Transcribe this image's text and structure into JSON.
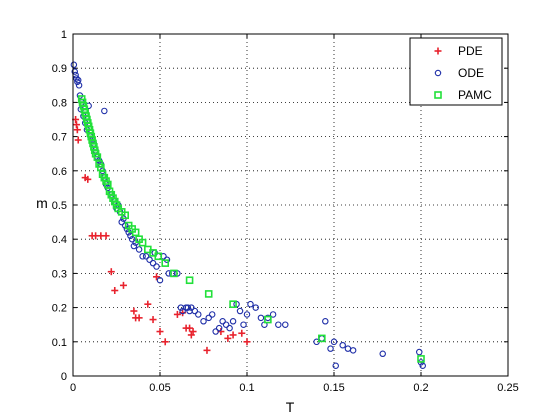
{
  "chart_data": {
    "type": "scatter",
    "xlabel": "T",
    "ylabel": "m",
    "xlim": [
      0,
      0.25
    ],
    "ylim": [
      0,
      1
    ],
    "x_ticks": [
      "0",
      "0.05",
      "0.1",
      "0.15",
      "0.2",
      "0.25"
    ],
    "y_ticks": [
      "0",
      "0.1",
      "0.2",
      "0.3",
      "0.4",
      "0.5",
      "0.6",
      "0.7",
      "0.8",
      "0.9",
      "1"
    ],
    "grid": true,
    "legend_position": "top-right",
    "series": [
      {
        "name": "PDE",
        "marker": "plus",
        "color": "#e8222d",
        "points": [
          [
            0.0015,
            0.75
          ],
          [
            0.002,
            0.735
          ],
          [
            0.0025,
            0.72
          ],
          [
            0.003,
            0.69
          ],
          [
            0.007,
            0.58
          ],
          [
            0.0085,
            0.575
          ],
          [
            0.011,
            0.41
          ],
          [
            0.013,
            0.41
          ],
          [
            0.016,
            0.41
          ],
          [
            0.019,
            0.41
          ],
          [
            0.022,
            0.305
          ],
          [
            0.024,
            0.25
          ],
          [
            0.029,
            0.265
          ],
          [
            0.035,
            0.19
          ],
          [
            0.036,
            0.17
          ],
          [
            0.038,
            0.17
          ],
          [
            0.043,
            0.21
          ],
          [
            0.046,
            0.165
          ],
          [
            0.048,
            0.29
          ],
          [
            0.05,
            0.13
          ],
          [
            0.053,
            0.1
          ],
          [
            0.06,
            0.18
          ],
          [
            0.063,
            0.185
          ],
          [
            0.065,
            0.14
          ],
          [
            0.067,
            0.14
          ],
          [
            0.068,
            0.12
          ],
          [
            0.069,
            0.13
          ],
          [
            0.077,
            0.075
          ],
          [
            0.085,
            0.13
          ],
          [
            0.089,
            0.11
          ],
          [
            0.092,
            0.12
          ],
          [
            0.097,
            0.125
          ],
          [
            0.1,
            0.1
          ]
        ]
      },
      {
        "name": "ODE",
        "marker": "circle",
        "color": "#1f2fa8",
        "points": [
          [
            0.0005,
            0.91
          ],
          [
            0.001,
            0.89
          ],
          [
            0.0015,
            0.88
          ],
          [
            0.002,
            0.87
          ],
          [
            0.0025,
            0.86
          ],
          [
            0.003,
            0.865
          ],
          [
            0.0035,
            0.85
          ],
          [
            0.004,
            0.82
          ],
          [
            0.0045,
            0.78
          ],
          [
            0.005,
            0.8
          ],
          [
            0.006,
            0.76
          ],
          [
            0.007,
            0.74
          ],
          [
            0.008,
            0.72
          ],
          [
            0.009,
            0.79
          ],
          [
            0.01,
            0.7
          ],
          [
            0.011,
            0.69
          ],
          [
            0.012,
            0.68
          ],
          [
            0.013,
            0.66
          ],
          [
            0.014,
            0.64
          ],
          [
            0.015,
            0.63
          ],
          [
            0.016,
            0.62
          ],
          [
            0.017,
            0.6
          ],
          [
            0.018,
            0.58
          ],
          [
            0.019,
            0.56
          ],
          [
            0.018,
            0.775
          ],
          [
            0.02,
            0.55
          ],
          [
            0.022,
            0.53
          ],
          [
            0.024,
            0.51
          ],
          [
            0.025,
            0.49
          ],
          [
            0.026,
            0.5
          ],
          [
            0.027,
            0.48
          ],
          [
            0.028,
            0.45
          ],
          [
            0.029,
            0.46
          ],
          [
            0.03,
            0.44
          ],
          [
            0.031,
            0.43
          ],
          [
            0.032,
            0.42
          ],
          [
            0.033,
            0.41
          ],
          [
            0.034,
            0.4
          ],
          [
            0.035,
            0.38
          ],
          [
            0.036,
            0.39
          ],
          [
            0.038,
            0.37
          ],
          [
            0.04,
            0.35
          ],
          [
            0.042,
            0.35
          ],
          [
            0.044,
            0.34
          ],
          [
            0.046,
            0.33
          ],
          [
            0.047,
            0.36
          ],
          [
            0.048,
            0.32
          ],
          [
            0.05,
            0.28
          ],
          [
            0.052,
            0.35
          ],
          [
            0.054,
            0.34
          ],
          [
            0.055,
            0.3
          ],
          [
            0.057,
            0.3
          ],
          [
            0.06,
            0.3
          ],
          [
            0.062,
            0.2
          ],
          [
            0.063,
            0.19
          ],
          [
            0.065,
            0.2
          ],
          [
            0.066,
            0.2
          ],
          [
            0.067,
            0.19
          ],
          [
            0.068,
            0.2
          ],
          [
            0.07,
            0.19
          ],
          [
            0.072,
            0.18
          ],
          [
            0.075,
            0.16
          ],
          [
            0.078,
            0.17
          ],
          [
            0.08,
            0.18
          ],
          [
            0.082,
            0.13
          ],
          [
            0.084,
            0.14
          ],
          [
            0.086,
            0.16
          ],
          [
            0.088,
            0.15
          ],
          [
            0.09,
            0.14
          ],
          [
            0.092,
            0.16
          ],
          [
            0.094,
            0.21
          ],
          [
            0.096,
            0.19
          ],
          [
            0.098,
            0.15
          ],
          [
            0.1,
            0.18
          ],
          [
            0.102,
            0.21
          ],
          [
            0.105,
            0.2
          ],
          [
            0.108,
            0.17
          ],
          [
            0.11,
            0.15
          ],
          [
            0.112,
            0.17
          ],
          [
            0.115,
            0.18
          ],
          [
            0.118,
            0.15
          ],
          [
            0.122,
            0.15
          ],
          [
            0.14,
            0.1
          ],
          [
            0.143,
            0.11
          ],
          [
            0.145,
            0.16
          ],
          [
            0.148,
            0.08
          ],
          [
            0.15,
            0.1
          ],
          [
            0.151,
            0.03
          ],
          [
            0.155,
            0.09
          ],
          [
            0.158,
            0.08
          ],
          [
            0.161,
            0.075
          ],
          [
            0.178,
            0.065
          ],
          [
            0.199,
            0.07
          ],
          [
            0.2,
            0.04
          ],
          [
            0.201,
            0.03
          ]
        ]
      },
      {
        "name": "PAMC",
        "marker": "square",
        "color": "#22e03a",
        "points": [
          [
            0.005,
            0.81
          ],
          [
            0.0055,
            0.8
          ],
          [
            0.006,
            0.79
          ],
          [
            0.0065,
            0.78
          ],
          [
            0.007,
            0.77
          ],
          [
            0.0075,
            0.76
          ],
          [
            0.008,
            0.75
          ],
          [
            0.0085,
            0.74
          ],
          [
            0.009,
            0.73
          ],
          [
            0.0095,
            0.72
          ],
          [
            0.01,
            0.71
          ],
          [
            0.0105,
            0.7
          ],
          [
            0.011,
            0.69
          ],
          [
            0.0115,
            0.68
          ],
          [
            0.012,
            0.67
          ],
          [
            0.0125,
            0.66
          ],
          [
            0.013,
            0.65
          ],
          [
            0.014,
            0.64
          ],
          [
            0.015,
            0.62
          ],
          [
            0.016,
            0.61
          ],
          [
            0.017,
            0.59
          ],
          [
            0.018,
            0.58
          ],
          [
            0.019,
            0.57
          ],
          [
            0.02,
            0.56
          ],
          [
            0.021,
            0.54
          ],
          [
            0.022,
            0.53
          ],
          [
            0.023,
            0.52
          ],
          [
            0.024,
            0.51
          ],
          [
            0.025,
            0.5
          ],
          [
            0.026,
            0.49
          ],
          [
            0.028,
            0.48
          ],
          [
            0.03,
            0.47
          ],
          [
            0.032,
            0.44
          ],
          [
            0.034,
            0.43
          ],
          [
            0.036,
            0.42
          ],
          [
            0.038,
            0.4
          ],
          [
            0.04,
            0.39
          ],
          [
            0.043,
            0.37
          ],
          [
            0.046,
            0.36
          ],
          [
            0.049,
            0.35
          ],
          [
            0.053,
            0.33
          ],
          [
            0.058,
            0.3
          ],
          [
            0.067,
            0.28
          ],
          [
            0.078,
            0.24
          ],
          [
            0.092,
            0.21
          ],
          [
            0.112,
            0.165
          ],
          [
            0.143,
            0.11
          ],
          [
            0.2,
            0.05
          ]
        ]
      }
    ]
  }
}
